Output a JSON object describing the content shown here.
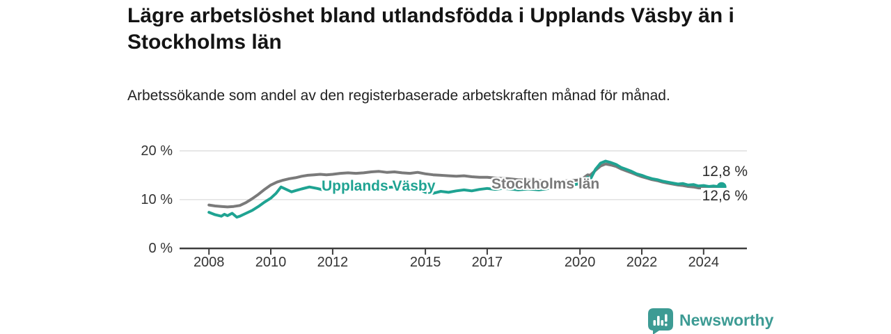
{
  "chart_data": {
    "type": "line",
    "title": "Lägre arbetslöshet bland utlandsfödda i Upplands Väsby än i Stockholms län",
    "subtitle": "Arbetssökande som andel av den registerbaserade arbetskraften månad för månad.",
    "x_unit": "decimal_year",
    "xlim": [
      2007.05,
      2025.4
    ],
    "ylim": [
      0,
      21.4
    ],
    "grid": "horizontal",
    "legend_position": "inline-labels",
    "y_ticks": [
      {
        "value": 0,
        "label": "0 %"
      },
      {
        "value": 10,
        "label": "10 %"
      },
      {
        "value": 20,
        "label": "20 %"
      }
    ],
    "x_ticks": [
      {
        "value": 2008,
        "label": "2008"
      },
      {
        "value": 2010,
        "label": "2010"
      },
      {
        "value": 2012,
        "label": "2012"
      },
      {
        "value": 2015,
        "label": "2015"
      },
      {
        "value": 2017,
        "label": "2017"
      },
      {
        "value": 2020,
        "label": "2020"
      },
      {
        "value": 2022,
        "label": "2022"
      },
      {
        "value": 2024,
        "label": "2024"
      }
    ],
    "series": [
      {
        "name": "Stockholms län",
        "color": "#7a7a7a",
        "end_label": "12,8 %",
        "end_value": 12.8,
        "end_dot": false,
        "points": [
          [
            2008.0,
            8.9
          ],
          [
            2008.2,
            8.7
          ],
          [
            2008.4,
            8.6
          ],
          [
            2008.6,
            8.5
          ],
          [
            2008.8,
            8.6
          ],
          [
            2009.0,
            8.8
          ],
          [
            2009.2,
            9.4
          ],
          [
            2009.4,
            10.2
          ],
          [
            2009.6,
            11.1
          ],
          [
            2009.8,
            12.1
          ],
          [
            2010.0,
            13.0
          ],
          [
            2010.2,
            13.6
          ],
          [
            2010.4,
            14.0
          ],
          [
            2010.6,
            14.3
          ],
          [
            2010.8,
            14.5
          ],
          [
            2011.0,
            14.8
          ],
          [
            2011.2,
            15.0
          ],
          [
            2011.4,
            15.1
          ],
          [
            2011.6,
            15.2
          ],
          [
            2011.8,
            15.1
          ],
          [
            2012.0,
            15.2
          ],
          [
            2012.25,
            15.4
          ],
          [
            2012.5,
            15.5
          ],
          [
            2012.75,
            15.4
          ],
          [
            2013.0,
            15.5
          ],
          [
            2013.25,
            15.7
          ],
          [
            2013.5,
            15.8
          ],
          [
            2013.75,
            15.6
          ],
          [
            2014.0,
            15.7
          ],
          [
            2014.25,
            15.5
          ],
          [
            2014.5,
            15.4
          ],
          [
            2014.75,
            15.6
          ],
          [
            2015.0,
            15.3
          ],
          [
            2015.25,
            15.1
          ],
          [
            2015.5,
            15.0
          ],
          [
            2015.75,
            14.9
          ],
          [
            2016.0,
            14.8
          ],
          [
            2016.25,
            14.9
          ],
          [
            2016.5,
            14.7
          ],
          [
            2016.75,
            14.6
          ],
          [
            2017.0,
            14.6
          ],
          [
            2017.33,
            14.4
          ],
          [
            2017.67,
            14.3
          ],
          [
            2018.0,
            14.1
          ],
          [
            2018.33,
            14.0
          ],
          [
            2018.67,
            13.9
          ],
          [
            2019.0,
            13.8
          ],
          [
            2019.33,
            13.8
          ],
          [
            2019.67,
            13.9
          ],
          [
            2019.92,
            14.0
          ],
          [
            2020.08,
            14.3
          ],
          [
            2020.25,
            15.1
          ],
          [
            2020.33,
            15.0
          ],
          [
            2020.5,
            16.0
          ],
          [
            2020.67,
            16.9
          ],
          [
            2020.83,
            17.3
          ],
          [
            2021.0,
            17.1
          ],
          [
            2021.17,
            16.8
          ],
          [
            2021.33,
            16.3
          ],
          [
            2021.5,
            15.9
          ],
          [
            2021.67,
            15.5
          ],
          [
            2021.83,
            15.1
          ],
          [
            2022.0,
            14.7
          ],
          [
            2022.17,
            14.4
          ],
          [
            2022.33,
            14.1
          ],
          [
            2022.5,
            13.9
          ],
          [
            2022.67,
            13.6
          ],
          [
            2022.83,
            13.4
          ],
          [
            2023.0,
            13.2
          ],
          [
            2023.17,
            13.0
          ],
          [
            2023.33,
            12.9
          ],
          [
            2023.5,
            12.7
          ],
          [
            2023.67,
            12.6
          ],
          [
            2023.83,
            12.4
          ],
          [
            2024.0,
            12.4
          ],
          [
            2024.17,
            12.5
          ],
          [
            2024.33,
            12.6
          ],
          [
            2024.58,
            12.8
          ]
        ]
      },
      {
        "name": "Upplands Väsby",
        "color": "#1fa392",
        "end_label": "12,6 %",
        "end_value": 12.6,
        "end_dot": true,
        "points": [
          [
            2008.0,
            7.4
          ],
          [
            2008.2,
            6.9
          ],
          [
            2008.4,
            6.6
          ],
          [
            2008.5,
            7.0
          ],
          [
            2008.6,
            6.7
          ],
          [
            2008.75,
            7.2
          ],
          [
            2008.9,
            6.4
          ],
          [
            2009.0,
            6.6
          ],
          [
            2009.2,
            7.2
          ],
          [
            2009.4,
            7.8
          ],
          [
            2009.6,
            8.6
          ],
          [
            2009.8,
            9.5
          ],
          [
            2010.0,
            10.3
          ],
          [
            2010.17,
            11.3
          ],
          [
            2010.33,
            12.6
          ],
          [
            2010.5,
            12.1
          ],
          [
            2010.67,
            11.6
          ],
          [
            2010.83,
            11.9
          ],
          [
            2011.0,
            12.2
          ],
          [
            2011.25,
            12.6
          ],
          [
            2011.5,
            12.3
          ],
          [
            2011.75,
            11.9
          ],
          [
            2012.0,
            12.1
          ],
          [
            2012.25,
            12.4
          ],
          [
            2012.5,
            12.2
          ],
          [
            2012.75,
            12.5
          ],
          [
            2013.0,
            12.6
          ],
          [
            2013.25,
            12.4
          ],
          [
            2013.5,
            12.7
          ],
          [
            2013.75,
            12.5
          ],
          [
            2014.0,
            12.6
          ],
          [
            2014.25,
            12.8
          ],
          [
            2014.5,
            12.9
          ],
          [
            2014.75,
            12.3
          ],
          [
            2015.0,
            11.5
          ],
          [
            2015.25,
            11.3
          ],
          [
            2015.5,
            11.7
          ],
          [
            2015.75,
            11.5
          ],
          [
            2016.0,
            11.8
          ],
          [
            2016.25,
            12.0
          ],
          [
            2016.5,
            11.8
          ],
          [
            2016.75,
            12.1
          ],
          [
            2017.0,
            12.3
          ],
          [
            2017.25,
            12.1
          ],
          [
            2017.5,
            12.3
          ],
          [
            2017.75,
            12.2
          ],
          [
            2018.0,
            12.0
          ],
          [
            2018.33,
            12.2
          ],
          [
            2018.67,
            12.0
          ],
          [
            2019.0,
            12.3
          ],
          [
            2019.33,
            12.5
          ],
          [
            2019.67,
            12.9
          ],
          [
            2019.92,
            13.2
          ],
          [
            2020.08,
            13.6
          ],
          [
            2020.25,
            14.6
          ],
          [
            2020.33,
            14.1
          ],
          [
            2020.5,
            16.2
          ],
          [
            2020.67,
            17.5
          ],
          [
            2020.83,
            17.9
          ],
          [
            2021.0,
            17.6
          ],
          [
            2021.17,
            17.2
          ],
          [
            2021.33,
            16.6
          ],
          [
            2021.5,
            16.2
          ],
          [
            2021.67,
            15.8
          ],
          [
            2021.83,
            15.3
          ],
          [
            2022.0,
            15.0
          ],
          [
            2022.17,
            14.6
          ],
          [
            2022.33,
            14.3
          ],
          [
            2022.5,
            14.1
          ],
          [
            2022.67,
            13.8
          ],
          [
            2022.83,
            13.6
          ],
          [
            2023.0,
            13.4
          ],
          [
            2023.17,
            13.2
          ],
          [
            2023.33,
            13.3
          ],
          [
            2023.5,
            13.0
          ],
          [
            2023.67,
            13.1
          ],
          [
            2023.83,
            12.8
          ],
          [
            2024.0,
            12.9
          ],
          [
            2024.17,
            12.7
          ],
          [
            2024.33,
            12.8
          ],
          [
            2024.58,
            12.6
          ]
        ]
      }
    ]
  },
  "footer": {
    "brand": "Newsworthy",
    "brand_color": "#3d9b94",
    "logo_icon": "bar-chart-speech-bubble"
  }
}
